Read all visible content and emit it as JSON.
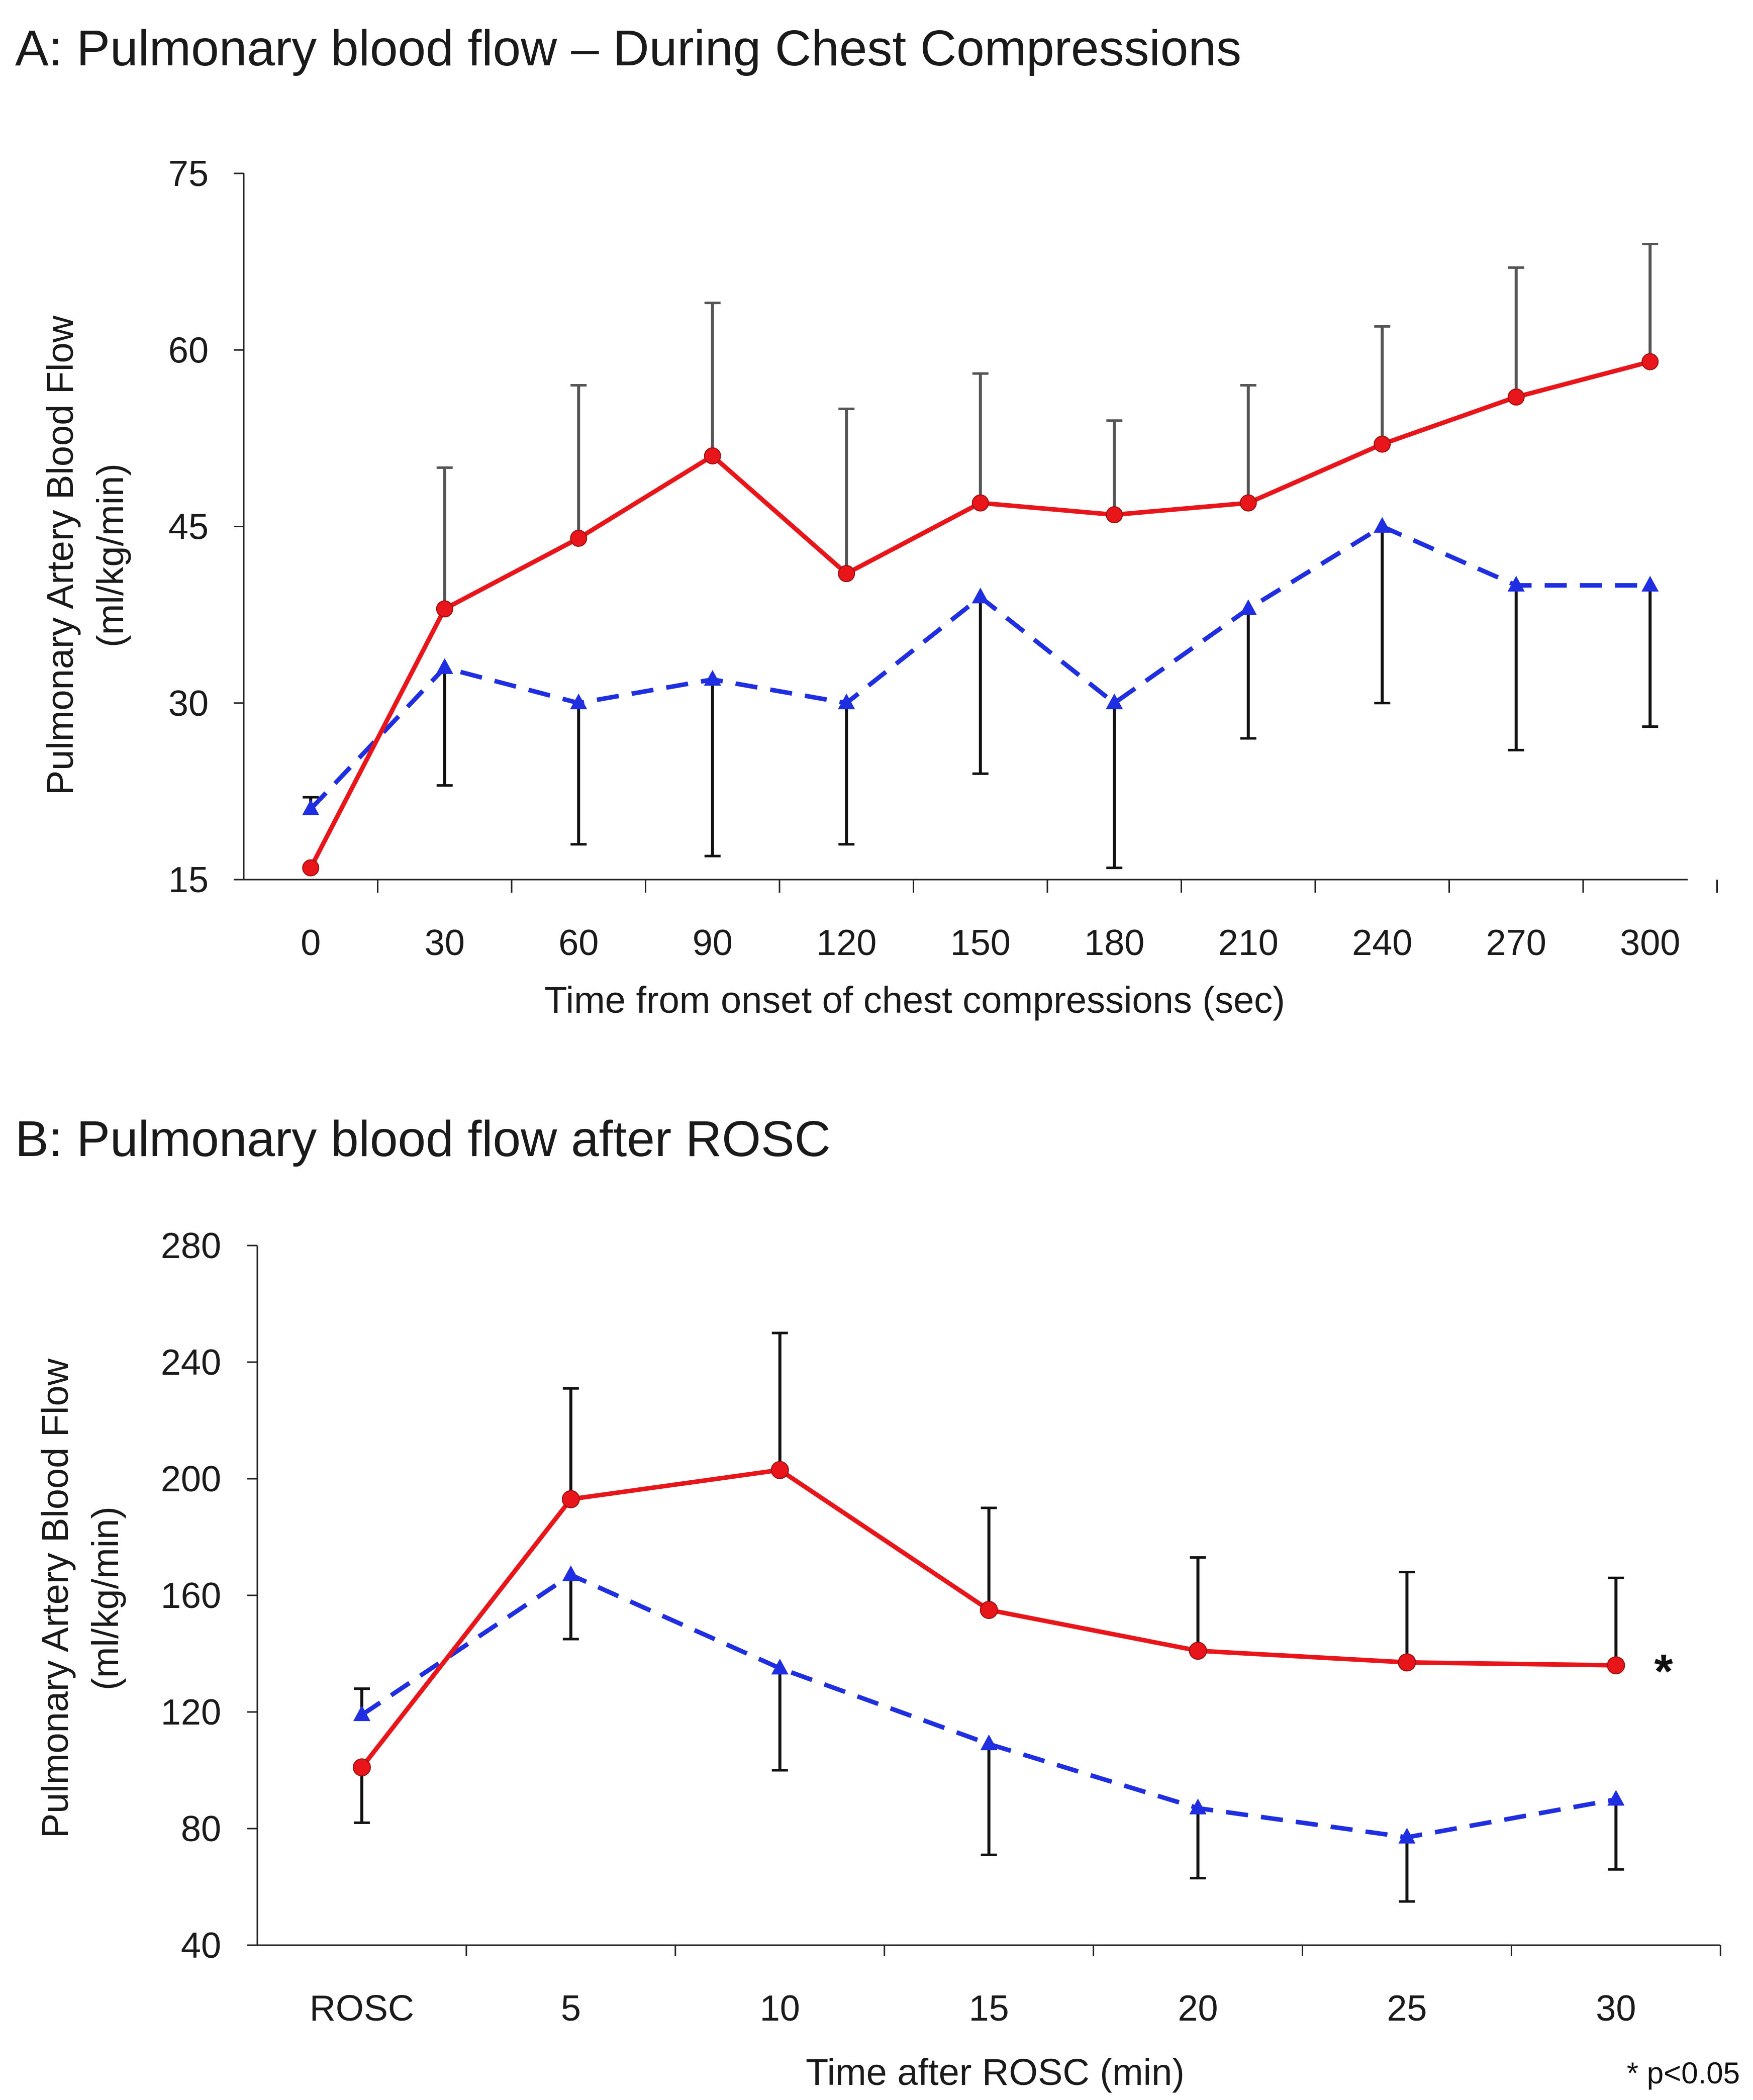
{
  "chart_data": [
    {
      "type": "line",
      "title": "A: Pulmonary blood flow – During Chest Compressions",
      "xlabel": "Time from onset of chest compressions (sec)",
      "ylabel_line1": "Pulmonary Artery Blood Flow",
      "ylabel_line2": "(ml/kg/min)",
      "ylim": [
        15,
        75
      ],
      "yticks": [
        15,
        30,
        45,
        60,
        75
      ],
      "categories": [
        "0",
        "30",
        "60",
        "90",
        "120",
        "150",
        "180",
        "210",
        "240",
        "270",
        "300"
      ],
      "series": [
        {
          "style": "solid",
          "marker": "circle",
          "color": "#e8161b",
          "error_color": "#555555",
          "values": [
            16,
            38,
            44,
            51,
            41,
            47,
            46,
            47,
            52,
            56,
            59
          ],
          "error_upper": [
            null,
            50,
            57,
            64,
            55,
            58,
            54,
            57,
            62,
            67,
            69
          ]
        },
        {
          "style": "dashed",
          "marker": "triangle",
          "color": "#1f2ee0",
          "error_color": "#111111",
          "values": [
            21,
            33,
            30,
            32,
            30,
            39,
            30,
            38,
            45,
            40,
            40
          ],
          "error_upper": [
            22,
            null,
            null,
            null,
            null,
            null,
            null,
            null,
            null,
            null,
            null
          ],
          "error_lower": [
            null,
            23,
            18,
            17,
            18,
            24,
            16,
            27,
            30,
            26,
            28
          ]
        }
      ]
    },
    {
      "type": "line",
      "title": "B: Pulmonary blood flow after ROSC",
      "xlabel": "Time after ROSC (min)",
      "ylabel_line1": "Pulmonary Artery Blood Flow",
      "ylabel_line2": "(ml/kg/min)",
      "ylim": [
        40,
        280
      ],
      "yticks": [
        40,
        80,
        120,
        160,
        200,
        240,
        280
      ],
      "categories": [
        "ROSC",
        "5",
        "10",
        "15",
        "20",
        "25",
        "30"
      ],
      "series": [
        {
          "style": "solid",
          "marker": "circle",
          "color": "#e8161b",
          "error_color": "#111111",
          "values": [
            101,
            193,
            203,
            155,
            141,
            137,
            136
          ],
          "error_upper": [
            null,
            231,
            250,
            190,
            173,
            168,
            166
          ],
          "error_lower": [
            82,
            null,
            null,
            null,
            null,
            null,
            null
          ]
        },
        {
          "style": "dashed",
          "marker": "triangle",
          "color": "#1f2ee0",
          "error_color": "#111111",
          "values": [
            119,
            167,
            135,
            109,
            87,
            77,
            90
          ],
          "error_upper": [
            128,
            null,
            null,
            null,
            null,
            null,
            null
          ],
          "error_lower": [
            null,
            145,
            100,
            71,
            63,
            55,
            66
          ]
        }
      ],
      "annotation": "*",
      "footnote": "* p<0.05"
    }
  ]
}
